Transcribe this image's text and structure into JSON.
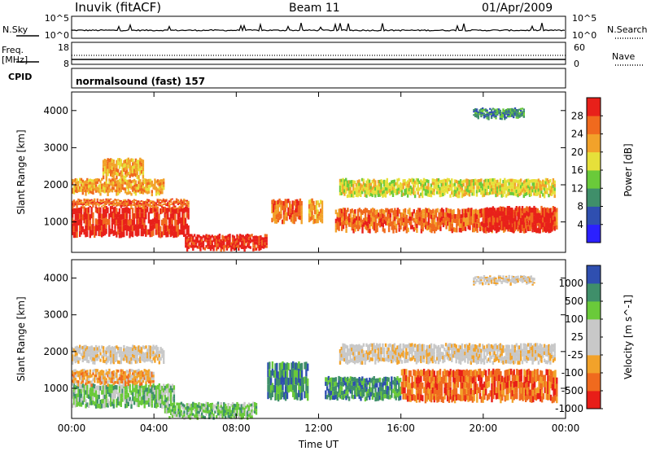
{
  "header": {
    "station": "Inuvik (fitACF)",
    "beam": "Beam 11",
    "date": "01/Apr/2009"
  },
  "strip_labels": {
    "nsky": "N.Sky",
    "freq_line1": "Freq.",
    "freq_line2": "[MHz]",
    "cpid": "CPID",
    "nsearch": "N.Search",
    "nave": "Nave",
    "nsky_ticks": [
      "10^5",
      "10^0"
    ],
    "nsearch_ticks": [
      "10^5",
      "10^0"
    ],
    "freq_ticks": [
      "18",
      "8"
    ],
    "nave_ticks": [
      "60",
      "0"
    ]
  },
  "cpid_text": "normalsound (fast) 157",
  "colors": {
    "power": [
      "#2b20ff",
      "#2f4fb0",
      "#3f8f6a",
      "#6aca3a",
      "#e6e03a",
      "#f2a22a",
      "#f06a1e",
      "#e8201a"
    ],
    "velocity": [
      "#e81e18",
      "#f06a1e",
      "#f2a22a",
      "#c8c8c8",
      "#c8c8c8",
      "#6aca3a",
      "#3f8f6a",
      "#2f4fb0"
    ]
  },
  "chart_data": [
    {
      "type": "heatmap",
      "title": "",
      "xlabel": "Time UT",
      "ylabel": "Slant Range [km]",
      "colorbar_label": "Power [dB]",
      "colorbar_ticks": [
        "28",
        "24",
        "20",
        "16",
        "12",
        "8",
        "4"
      ],
      "x_ticks": [
        "00:00",
        "04:00",
        "08:00",
        "12:00",
        "16:00",
        "20:00",
        "00:00"
      ],
      "y_ticks": [
        "1000",
        "2000",
        "3000",
        "4000"
      ],
      "xlim": [
        0,
        24
      ],
      "ylim": [
        180,
        4500
      ],
      "regions": [
        {
          "t0": 0.0,
          "t1": 5.7,
          "r0": 620,
          "r1": 1400,
          "level": 7
        },
        {
          "t0": 0.0,
          "t1": 5.7,
          "r0": 1400,
          "r1": 1600,
          "level": 6
        },
        {
          "t0": 0.0,
          "t1": 4.5,
          "r0": 1750,
          "r1": 2150,
          "level": 5
        },
        {
          "t0": 1.5,
          "t1": 3.5,
          "r0": 2200,
          "r1": 2700,
          "level": 5
        },
        {
          "t0": 5.5,
          "t1": 9.5,
          "r0": 260,
          "r1": 650,
          "level": 7
        },
        {
          "t0": 9.7,
          "t1": 11.2,
          "r0": 1000,
          "r1": 1600,
          "level": 6
        },
        {
          "t0": 11.5,
          "t1": 12.2,
          "r0": 1000,
          "r1": 1600,
          "level": 5
        },
        {
          "t0": 12.8,
          "t1": 23.6,
          "r0": 750,
          "r1": 1350,
          "level": 6
        },
        {
          "t0": 20.0,
          "t1": 23.5,
          "r0": 750,
          "r1": 1400,
          "level": 7
        },
        {
          "t0": 13.0,
          "t1": 23.5,
          "r0": 1700,
          "r1": 2150,
          "level": 4
        },
        {
          "t0": 19.5,
          "t1": 22.0,
          "r0": 3800,
          "r1": 4050,
          "level": 2
        }
      ]
    },
    {
      "type": "heatmap",
      "title": "",
      "xlabel": "Time UT",
      "ylabel": "Slant Range [km]",
      "colorbar_label": "Velocity [m s^-1]",
      "colorbar_ticks": [
        "1000",
        "500",
        "100",
        "25",
        "-25",
        "-100",
        "-500",
        "-1000"
      ],
      "x_ticks": [
        "00:00",
        "04:00",
        "08:00",
        "12:00",
        "16:00",
        "20:00",
        "00:00"
      ],
      "y_ticks": [
        "1000",
        "2000",
        "3000",
        "4000"
      ],
      "xlim": [
        0,
        24
      ],
      "ylim": [
        180,
        4500
      ],
      "regions": [
        {
          "t0": 0.0,
          "t1": 5.0,
          "r0": 500,
          "r1": 1100,
          "level": 5
        },
        {
          "t0": 0.0,
          "t1": 4.0,
          "r0": 1100,
          "r1": 1500,
          "level": 2
        },
        {
          "t0": 0.0,
          "t1": 4.5,
          "r0": 1700,
          "r1": 2150,
          "level": 3
        },
        {
          "t0": 4.5,
          "t1": 9.0,
          "r0": 200,
          "r1": 600,
          "level": 5
        },
        {
          "t0": 9.5,
          "t1": 11.5,
          "r0": 700,
          "r1": 1700,
          "level": 6
        },
        {
          "t0": 12.3,
          "t1": 16.0,
          "r0": 700,
          "r1": 1300,
          "level": 6
        },
        {
          "t0": 16.0,
          "t1": 23.6,
          "r0": 650,
          "r1": 1500,
          "level": 1
        },
        {
          "t0": 13.0,
          "t1": 23.5,
          "r0": 1700,
          "r1": 2200,
          "level": 3
        },
        {
          "t0": 19.5,
          "t1": 22.5,
          "r0": 3850,
          "r1": 4050,
          "level": 3
        }
      ]
    }
  ]
}
